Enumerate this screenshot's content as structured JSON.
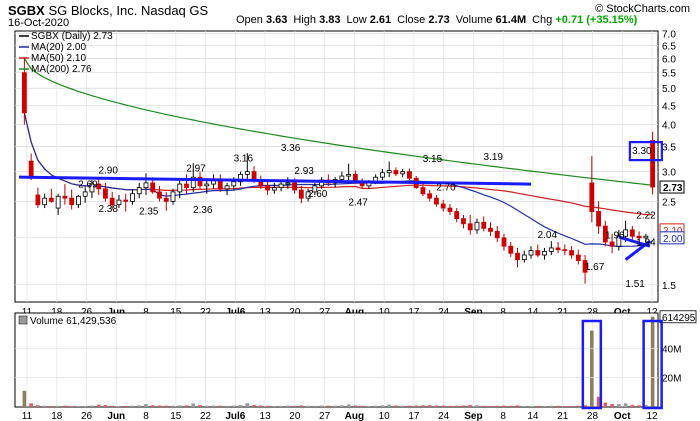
{
  "header": {
    "symbol": "SGBX",
    "company": "SG Blocks, Inc.",
    "exchange": "Nasdaq GS",
    "date": "16-Oct-2020",
    "brand": "© StockCharts.com",
    "stats": [
      {
        "key": "Open",
        "value": "3.63"
      },
      {
        "key": "High",
        "value": "3.83"
      },
      {
        "key": "Low",
        "value": "2.61"
      },
      {
        "key": "Close",
        "value": "2.73"
      },
      {
        "key": "Volume",
        "value": "61.4M"
      },
      {
        "key": "Chg",
        "value": "+0.71 (+35.15%)",
        "color": "#00aa00"
      }
    ]
  },
  "chart_data": [
    {
      "type": "candlestick",
      "legend": [
        {
          "label": "SGBX (Daily) 2.73",
          "color": "#000000"
        },
        {
          "label": "MA(20) 2.00",
          "color": "#1f2fa8"
        },
        {
          "label": "MA(50) 2.10",
          "color": "#cc2222"
        },
        {
          "label": "MA(200) 2.76",
          "color": "#1f8a1f"
        }
      ],
      "y_axis": {
        "scale": "log",
        "ticks": [
          "7.0",
          "6.5",
          "6.0",
          "5.5",
          "5.0",
          "4.5",
          "4.0",
          "3.5",
          "3.0",
          "2.5",
          "2.0",
          "1.5"
        ],
        "range": [
          1.35,
          7.1
        ]
      },
      "x_ticks": [
        "11",
        "18",
        "26",
        "Jun",
        "8",
        "15",
        "22",
        "Jul6",
        "13",
        "20",
        "27",
        "Aug",
        "10",
        "17",
        "24",
        "Sep",
        "8",
        "14",
        "21",
        "28",
        "Oct",
        "12"
      ],
      "last_price_labels": [
        {
          "text": "2.73",
          "color": "#000000"
        },
        {
          "text": "2.10",
          "color": "#cc2222"
        },
        {
          "text": "2.00",
          "color": "#1f2fa8"
        }
      ],
      "annotations": [
        "2.90",
        "2.69",
        "2.38",
        "2.35",
        "2.97",
        "3.16",
        "2.36",
        "3.36",
        "2.93",
        "2.60",
        "2.47",
        "3.15",
        "2.70",
        "3.19",
        "2.04",
        "1.67",
        "1.96",
        "1.51",
        "3.30",
        "2.22",
        "1.94"
      ],
      "ohlc": [
        [
          5.5,
          6.05,
          4.0,
          4.3
        ],
        [
          3.2,
          3.35,
          2.85,
          2.9
        ],
        [
          2.6,
          2.72,
          2.4,
          2.45
        ],
        [
          2.45,
          2.62,
          2.4,
          2.55
        ],
        [
          2.55,
          2.7,
          2.48,
          2.5
        ],
        [
          2.4,
          2.62,
          2.3,
          2.58
        ],
        [
          2.58,
          2.78,
          2.45,
          2.55
        ],
        [
          2.55,
          2.69,
          2.38,
          2.45
        ],
        [
          2.45,
          2.6,
          2.4,
          2.58
        ],
        [
          2.58,
          2.72,
          2.48,
          2.65
        ],
        [
          2.65,
          2.85,
          2.55,
          2.78
        ],
        [
          2.78,
          2.9,
          2.6,
          2.7
        ],
        [
          2.7,
          2.8,
          2.5,
          2.55
        ],
        [
          2.55,
          2.65,
          2.38,
          2.45
        ],
        [
          2.45,
          2.6,
          2.4,
          2.52
        ],
        [
          2.52,
          2.62,
          2.35,
          2.5
        ],
        [
          2.5,
          2.7,
          2.45,
          2.62
        ],
        [
          2.62,
          2.8,
          2.55,
          2.72
        ],
        [
          2.72,
          2.97,
          2.6,
          2.8
        ],
        [
          2.8,
          2.9,
          2.62,
          2.65
        ],
        [
          2.65,
          2.75,
          2.5,
          2.55
        ],
        [
          2.55,
          2.65,
          2.36,
          2.5
        ],
        [
          2.5,
          2.7,
          2.45,
          2.65
        ],
        [
          2.65,
          2.85,
          2.55,
          2.78
        ],
        [
          2.78,
          2.95,
          2.62,
          2.72
        ],
        [
          2.72,
          3.16,
          2.65,
          2.9
        ],
        [
          2.9,
          3.0,
          2.7,
          2.75
        ],
        [
          2.75,
          2.85,
          2.62,
          2.78
        ],
        [
          2.78,
          2.95,
          2.7,
          2.85
        ],
        [
          2.85,
          2.95,
          2.65,
          2.7
        ],
        [
          2.7,
          2.8,
          2.6,
          2.75
        ],
        [
          2.75,
          2.9,
          2.68,
          2.82
        ],
        [
          2.82,
          3.0,
          2.75,
          2.95
        ],
        [
          2.95,
          3.36,
          2.85,
          3.0
        ],
        [
          3.0,
          3.1,
          2.8,
          2.85
        ],
        [
          2.85,
          2.93,
          2.7,
          2.75
        ],
        [
          2.75,
          2.85,
          2.6,
          2.68
        ],
        [
          2.68,
          2.8,
          2.62,
          2.72
        ],
        [
          2.72,
          2.85,
          2.66,
          2.78
        ],
        [
          2.78,
          2.9,
          2.7,
          2.8
        ],
        [
          2.8,
          2.88,
          2.62,
          2.68
        ],
        [
          2.68,
          2.75,
          2.47,
          2.55
        ],
        [
          2.55,
          2.7,
          2.5,
          2.65
        ],
        [
          2.65,
          2.8,
          2.6,
          2.75
        ],
        [
          2.75,
          2.9,
          2.7,
          2.85
        ],
        [
          2.85,
          2.95,
          2.75,
          2.8
        ],
        [
          2.8,
          2.9,
          2.72,
          2.86
        ],
        [
          2.86,
          3.0,
          2.8,
          2.92
        ],
        [
          2.92,
          3.15,
          2.85,
          2.95
        ],
        [
          2.95,
          3.02,
          2.78,
          2.82
        ],
        [
          2.82,
          2.88,
          2.7,
          2.75
        ],
        [
          2.75,
          2.85,
          2.7,
          2.82
        ],
        [
          2.82,
          2.95,
          2.78,
          2.9
        ],
        [
          2.9,
          3.05,
          2.85,
          2.98
        ],
        [
          2.98,
          3.19,
          2.9,
          3.02
        ],
        [
          3.02,
          3.08,
          2.92,
          2.96
        ],
        [
          2.96,
          3.05,
          2.9,
          3.0
        ],
        [
          3.0,
          3.06,
          2.85,
          2.88
        ],
        [
          2.88,
          2.92,
          2.7,
          2.72
        ],
        [
          2.72,
          2.78,
          2.58,
          2.62
        ],
        [
          2.62,
          2.68,
          2.5,
          2.55
        ],
        [
          2.55,
          2.6,
          2.42,
          2.46
        ],
        [
          2.46,
          2.52,
          2.35,
          2.4
        ],
        [
          2.4,
          2.46,
          2.3,
          2.35
        ],
        [
          2.35,
          2.4,
          2.2,
          2.25
        ],
        [
          2.25,
          2.3,
          2.12,
          2.18
        ],
        [
          2.18,
          2.3,
          2.04,
          2.1
        ],
        [
          2.1,
          2.25,
          2.05,
          2.2
        ],
        [
          2.2,
          2.28,
          2.08,
          2.12
        ],
        [
          2.12,
          2.2,
          2.02,
          2.08
        ],
        [
          2.08,
          2.15,
          1.95,
          2.0
        ],
        [
          2.0,
          2.05,
          1.85,
          1.9
        ],
        [
          1.9,
          1.95,
          1.78,
          1.82
        ],
        [
          1.82,
          1.88,
          1.67,
          1.75
        ],
        [
          1.75,
          1.85,
          1.72,
          1.8
        ],
        [
          1.8,
          1.9,
          1.76,
          1.85
        ],
        [
          1.85,
          1.92,
          1.78,
          1.8
        ],
        [
          1.8,
          1.88,
          1.75,
          1.84
        ],
        [
          1.84,
          1.96,
          1.8,
          1.88
        ],
        [
          1.88,
          1.95,
          1.82,
          1.86
        ],
        [
          1.86,
          1.92,
          1.8,
          1.85
        ],
        [
          1.85,
          1.9,
          1.76,
          1.8
        ],
        [
          1.8,
          1.86,
          1.7,
          1.74
        ],
        [
          1.74,
          1.8,
          1.51,
          1.62
        ],
        [
          2.8,
          3.3,
          2.2,
          2.35
        ],
        [
          2.35,
          2.5,
          2.05,
          2.15
        ],
        [
          2.15,
          2.22,
          1.9,
          1.95
        ],
        [
          1.95,
          2.05,
          1.82,
          1.9
        ],
        [
          1.9,
          2.1,
          1.85,
          2.02
        ],
        [
          2.02,
          2.22,
          1.95,
          2.1
        ],
        [
          2.1,
          2.15,
          1.98,
          2.02
        ],
        [
          2.02,
          2.08,
          1.94,
          2.0
        ],
        [
          2.0,
          2.05,
          1.94,
          2.02
        ],
        [
          3.63,
          3.83,
          2.61,
          2.73
        ]
      ]
    },
    {
      "type": "bar",
      "legend": [
        {
          "label": "Volume 61,429,536",
          "color": "#000000"
        }
      ],
      "y_axis": {
        "ticks": [
          "40M",
          "20M"
        ],
        "range": [
          0,
          64000000
        ]
      },
      "last_value_label": "61429536",
      "x_ticks": [
        "11",
        "18",
        "26",
        "Jun",
        "8",
        "15",
        "22",
        "Jul6",
        "13",
        "20",
        "27",
        "Aug",
        "10",
        "17",
        "24",
        "Sep",
        "8",
        "14",
        "21",
        "28",
        "Oct",
        "12"
      ],
      "values": [
        11000000,
        2500000,
        1200000,
        900000,
        700000,
        800000,
        900000,
        600000,
        700000,
        800000,
        1000000,
        1600000,
        1300000,
        800000,
        700000,
        700000,
        900000,
        1100000,
        2000000,
        1200000,
        1000000,
        900000,
        900000,
        1100000,
        1100000,
        2400000,
        1300000,
        900000,
        1000000,
        900000,
        800000,
        900000,
        1300000,
        2600000,
        1400000,
        1000000,
        800000,
        700000,
        800000,
        900000,
        800000,
        1100000,
        800000,
        800000,
        1000000,
        900000,
        900000,
        1100000,
        1700000,
        1000000,
        800000,
        700000,
        900000,
        1100000,
        1600000,
        1000000,
        900000,
        900000,
        1000000,
        1100000,
        1200000,
        1000000,
        900000,
        800000,
        900000,
        1000000,
        1300000,
        1100000,
        800000,
        700000,
        800000,
        900000,
        800000,
        1100000,
        700000,
        700000,
        700000,
        700000,
        900000,
        800000,
        700000,
        700000,
        800000,
        1200000,
        52000000,
        7000000,
        3000000,
        2000000,
        2000000,
        2500000,
        1500000,
        1200000,
        1400000,
        61429536
      ]
    }
  ]
}
